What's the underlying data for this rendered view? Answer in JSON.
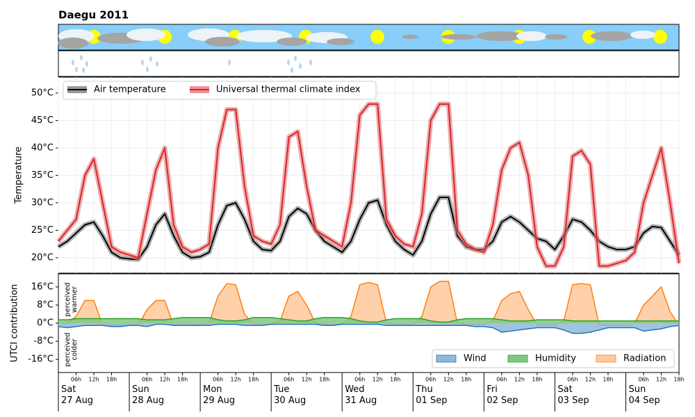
{
  "chart_data": [
    {
      "type": "line",
      "title": "Daegu 2011",
      "ylabel": "Temperature",
      "x": [
        0,
        3,
        6,
        9,
        12,
        15,
        18,
        21,
        24,
        27,
        30,
        33,
        36,
        39,
        42,
        45,
        48,
        51,
        54,
        57,
        60,
        63,
        66,
        69,
        72,
        75,
        78,
        81,
        84,
        87,
        90,
        93,
        96,
        99,
        102,
        105,
        108,
        111,
        114,
        117,
        120,
        123,
        126,
        129,
        132,
        135,
        138,
        141,
        144,
        147,
        150,
        153,
        156,
        159,
        162,
        165,
        168,
        171,
        174,
        177,
        180,
        183,
        186,
        189,
        192,
        195,
        198,
        201,
        204,
        207,
        210
      ],
      "xlim": [
        0,
        210
      ],
      "ylim": [
        17.2,
        52.9
      ],
      "yticks": [
        {
          "value": 20,
          "label": "20°C"
        },
        {
          "value": 25,
          "label": "25°C"
        },
        {
          "value": 30,
          "label": "30°C"
        },
        {
          "value": 35,
          "label": "35°C"
        },
        {
          "value": 40,
          "label": "40°C"
        },
        {
          "value": 45,
          "label": "45°C"
        },
        {
          "value": 50,
          "label": "50°C"
        }
      ],
      "grid": true,
      "legend": "upper left",
      "series": [
        {
          "name": "Air temperature",
          "color": "#000000",
          "band_color": "#7f7f7f",
          "values": [
            22,
            23,
            24.5,
            26,
            26.5,
            24,
            21,
            20,
            19.8,
            19.7,
            22,
            26,
            28,
            24,
            21,
            20,
            20.2,
            21,
            26,
            29.5,
            30,
            27,
            23,
            21.5,
            21.3,
            23,
            27.5,
            29,
            28,
            25,
            23,
            22,
            21,
            23,
            27,
            30,
            30.5,
            26,
            23,
            21.5,
            20.5,
            23,
            28,
            31,
            31,
            24,
            22,
            21.5,
            21.5,
            23,
            26.5,
            27.5,
            26.5,
            25,
            23.5,
            23,
            21.5,
            24,
            27,
            26.5,
            25,
            23,
            22,
            21.5,
            21.5,
            22,
            24.5,
            25.7,
            25.5,
            23,
            20.5
          ]
        },
        {
          "name": "Universal thermal climate index",
          "color": "#d62728",
          "band_color": "#e8787a",
          "values": [
            23,
            25,
            27,
            35,
            38,
            30,
            22,
            21,
            20.5,
            20,
            28,
            36,
            40,
            26,
            22,
            21,
            21.5,
            22.5,
            40,
            47,
            47,
            33,
            24,
            23,
            22.5,
            26,
            42,
            43,
            33,
            25,
            24,
            23,
            22,
            30,
            46,
            48,
            48,
            27,
            24,
            22.5,
            22,
            28,
            45,
            48,
            48,
            25,
            22.5,
            21.5,
            21,
            26,
            36,
            40,
            41,
            35,
            22,
            18.5,
            18.5,
            22,
            38.5,
            39.5,
            37,
            18.5,
            18.5,
            19,
            19.5,
            21,
            30,
            35,
            40,
            30,
            19
          ]
        }
      ]
    },
    {
      "type": "area",
      "ylabel": "UTCI contribution",
      "annotations": [
        [
          "perceived",
          "warmer"
        ],
        [
          "perceived",
          "colder"
        ]
      ],
      "x": [
        0,
        3,
        6,
        9,
        12,
        15,
        18,
        21,
        24,
        27,
        30,
        33,
        36,
        39,
        42,
        45,
        48,
        51,
        54,
        57,
        60,
        63,
        66,
        69,
        72,
        75,
        78,
        81,
        84,
        87,
        90,
        93,
        96,
        99,
        102,
        105,
        108,
        111,
        114,
        117,
        120,
        123,
        126,
        129,
        132,
        135,
        138,
        141,
        144,
        147,
        150,
        153,
        156,
        159,
        162,
        165,
        168,
        171,
        174,
        177,
        180,
        183,
        186,
        189,
        192,
        195,
        198,
        201,
        204,
        207,
        210
      ],
      "xlim": [
        0,
        210
      ],
      "xticks": [
        {
          "value": 0,
          "label": "Sat\n27 Aug"
        },
        {
          "value": 24,
          "label": "Sun\n28 Aug"
        },
        {
          "value": 48,
          "label": "Mon\n29 Aug"
        },
        {
          "value": 72,
          "label": "Tue\n30 Aug"
        },
        {
          "value": 96,
          "label": "Wed\n31 Aug"
        },
        {
          "value": 120,
          "label": "Thu\n01 Sep"
        },
        {
          "value": 144,
          "label": "Fri\n02 Sep"
        },
        {
          "value": 168,
          "label": "Sat\n03 Sep"
        },
        {
          "value": 192,
          "label": "Sun\n04 Sep"
        }
      ],
      "minor_xticks": [
        {
          "value": 6,
          "label": "06h"
        },
        {
          "value": 12,
          "label": "12h"
        },
        {
          "value": 18,
          "label": "18h"
        },
        {
          "value": 30,
          "label": "06h"
        },
        {
          "value": 36,
          "label": "12h"
        },
        {
          "value": 42,
          "label": "18h"
        },
        {
          "value": 54,
          "label": "06h"
        },
        {
          "value": 60,
          "label": "12h"
        },
        {
          "value": 66,
          "label": "18h"
        },
        {
          "value": 78,
          "label": "06h"
        },
        {
          "value": 84,
          "label": "12h"
        },
        {
          "value": 90,
          "label": "18h"
        },
        {
          "value": 102,
          "label": "06h"
        },
        {
          "value": 108,
          "label": "12h"
        },
        {
          "value": 114,
          "label": "18h"
        },
        {
          "value": 126,
          "label": "06h"
        },
        {
          "value": 132,
          "label": "12h"
        },
        {
          "value": 138,
          "label": "18h"
        },
        {
          "value": 150,
          "label": "06h"
        },
        {
          "value": 156,
          "label": "12h"
        },
        {
          "value": 162,
          "label": "18h"
        },
        {
          "value": 174,
          "label": "06h"
        },
        {
          "value": 180,
          "label": "12h"
        },
        {
          "value": 186,
          "label": "18h"
        },
        {
          "value": 198,
          "label": "06h"
        },
        {
          "value": 204,
          "label": "12h"
        },
        {
          "value": 210,
          "label": "18h"
        }
      ],
      "ylim": [
        -21.8,
        21.8
      ],
      "yticks": [
        {
          "value": 16,
          "label": "16°C"
        },
        {
          "value": 8,
          "label": "8°C"
        },
        {
          "value": 0,
          "label": "0°C"
        },
        {
          "value": -8,
          "label": "-8°C"
        },
        {
          "value": -16,
          "label": "-16°C"
        }
      ],
      "legend": "lower right",
      "series": [
        {
          "name": "Wind",
          "color": "#1f77b4",
          "fill": "#8fb8dc",
          "values": [
            -1.5,
            -2,
            -1.5,
            -1,
            -1,
            -1,
            -1.5,
            -1.5,
            -1,
            -1,
            -1.5,
            -0.5,
            -0.5,
            -1,
            -1,
            -1,
            -1,
            -1,
            -0.5,
            -0.5,
            -0.5,
            -1,
            -1,
            -1,
            -0.5,
            -0.5,
            -0.5,
            -0.5,
            -0.5,
            -0.5,
            -1,
            -1,
            -0.5,
            -0.5,
            -0.5,
            -0.5,
            -0.5,
            -1,
            -1,
            -1,
            -1,
            -1,
            -1,
            -1,
            -1,
            -1,
            -1,
            -1.5,
            -1.5,
            -2,
            -4,
            -3.5,
            -3,
            -2.5,
            -2,
            -2,
            -2,
            -3,
            -4.5,
            -4.5,
            -4,
            -3,
            -2,
            -2,
            -2,
            -2,
            -3.5,
            -3,
            -2.5,
            -1.5,
            -1
          ]
        },
        {
          "name": "Humidity",
          "color": "#2ca02c",
          "fill": "#80c880",
          "values": [
            1.5,
            1.5,
            2,
            2,
            2,
            2,
            2,
            2,
            2,
            2,
            1.5,
            1.5,
            1.5,
            2,
            2.5,
            2.5,
            2.5,
            2.5,
            1.5,
            1,
            1,
            1.5,
            2.5,
            2.5,
            2.5,
            2,
            1.5,
            1,
            1,
            2,
            2.5,
            2.5,
            2.5,
            2,
            1,
            0.5,
            0.5,
            1.5,
            2,
            2,
            2,
            2,
            1,
            0.5,
            0.5,
            1.5,
            2,
            2,
            2,
            2,
            1.5,
            1,
            1,
            1,
            1.5,
            1.5,
            1.5,
            1.5,
            1,
            1,
            1,
            1,
            1,
            1,
            1,
            1,
            1,
            1,
            1,
            1,
            1
          ]
        },
        {
          "name": "Radiation",
          "color": "#ff7f0e",
          "fill": "#ffc99c",
          "values": [
            0,
            0,
            3,
            10,
            10,
            -1,
            -1,
            -1,
            -1,
            -1,
            6,
            10,
            10,
            -1,
            -1,
            -1,
            -0.5,
            0,
            12,
            17.5,
            17,
            4,
            -0.5,
            -0.5,
            -0.5,
            1,
            12,
            14,
            8,
            0,
            -0.5,
            -0.5,
            -0.5,
            3,
            17,
            18,
            17,
            0,
            -0.5,
            -0.5,
            -0.5,
            3,
            16,
            18.5,
            18.5,
            0,
            -0.5,
            -0.5,
            -0.5,
            1,
            10,
            13,
            14,
            6,
            -1,
            -1,
            -1,
            1,
            17,
            17.5,
            17,
            -1,
            -1,
            -1,
            -1,
            0,
            8,
            12,
            16,
            5,
            -1
          ]
        }
      ]
    }
  ]
}
